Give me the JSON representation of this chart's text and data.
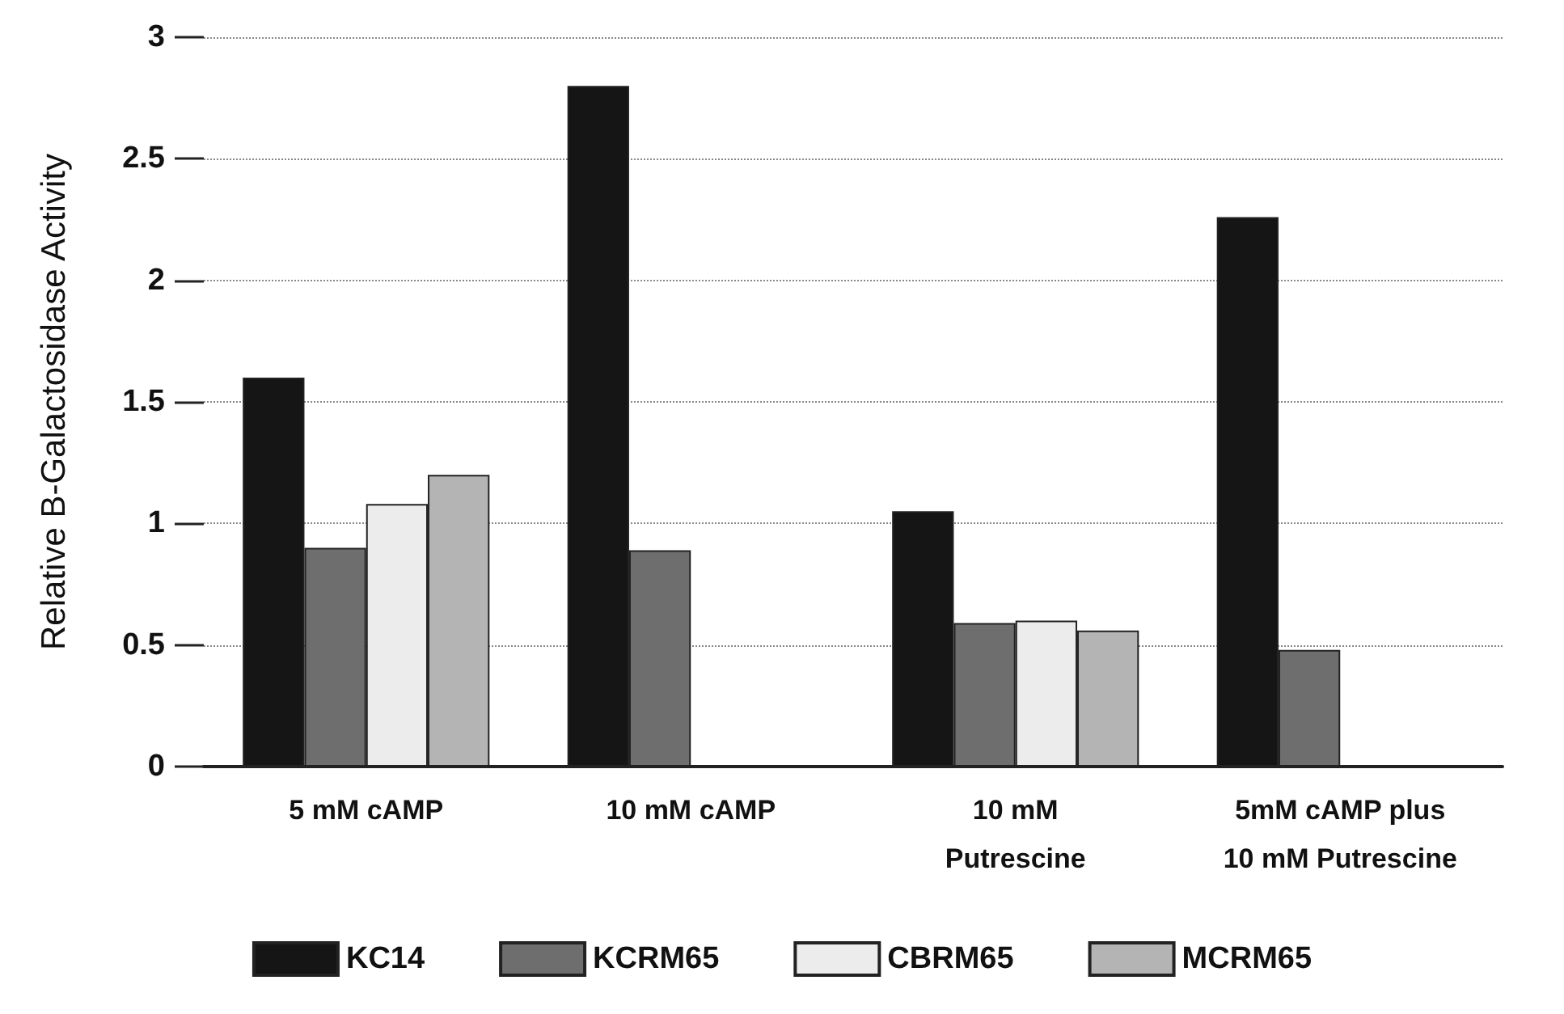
{
  "chart_data": {
    "type": "bar",
    "ylabel": "Relative B-Galactosidase Activity",
    "categories": [
      "5 mM cAMP",
      "10 mM cAMP",
      "10 mM\nPutrescine",
      "5mM cAMP plus\n10 mM Putrescine"
    ],
    "series": [
      {
        "name": "KC14",
        "color": "#151515",
        "values": [
          1.6,
          2.8,
          1.05,
          2.26
        ]
      },
      {
        "name": "KCRM65",
        "color": "#6e6e6e",
        "values": [
          0.9,
          0.89,
          0.59,
          0.48
        ]
      },
      {
        "name": "CBRM65",
        "color": "#ececec",
        "values": [
          1.08,
          null,
          0.6,
          null
        ]
      },
      {
        "name": "MCRM65",
        "color": "#b4b4b4",
        "values": [
          1.2,
          null,
          0.56,
          null
        ]
      }
    ],
    "ylim": [
      0,
      3
    ],
    "yticks": [
      0,
      0.5,
      1,
      1.5,
      2,
      2.5,
      3
    ],
    "grid": "y",
    "legend": "bottom"
  }
}
